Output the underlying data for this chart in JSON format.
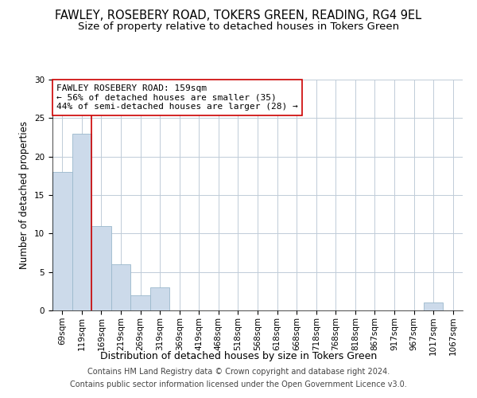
{
  "title": "FAWLEY, ROSEBERY ROAD, TOKERS GREEN, READING, RG4 9EL",
  "subtitle": "Size of property relative to detached houses in Tokers Green",
  "xlabel": "Distribution of detached houses by size in Tokers Green",
  "ylabel": "Number of detached properties",
  "footer_line1": "Contains HM Land Registry data © Crown copyright and database right 2024.",
  "footer_line2": "Contains public sector information licensed under the Open Government Licence v3.0.",
  "bin_labels": [
    "69sqm",
    "119sqm",
    "169sqm",
    "219sqm",
    "269sqm",
    "319sqm",
    "369sqm",
    "419sqm",
    "468sqm",
    "518sqm",
    "568sqm",
    "618sqm",
    "668sqm",
    "718sqm",
    "768sqm",
    "818sqm",
    "867sqm",
    "917sqm",
    "967sqm",
    "1017sqm",
    "1067sqm"
  ],
  "bar_values": [
    18,
    23,
    11,
    6,
    2,
    3,
    0,
    0,
    0,
    0,
    0,
    0,
    0,
    0,
    0,
    0,
    0,
    0,
    0,
    1,
    0
  ],
  "bar_color": "#ccdaea",
  "bar_edgecolor": "#9ab8cc",
  "vline_index": 1.5,
  "vline_color": "#cc0000",
  "annotation_line1": "FAWLEY ROSEBERY ROAD: 159sqm",
  "annotation_line2": "← 56% of detached houses are smaller (35)",
  "annotation_line3": "44% of semi-detached houses are larger (28) →",
  "ylim": [
    0,
    30
  ],
  "yticks": [
    0,
    5,
    10,
    15,
    20,
    25,
    30
  ],
  "background_color": "#ffffff",
  "grid_color": "#c0ccd8",
  "title_fontsize": 10.5,
  "subtitle_fontsize": 9.5,
  "xlabel_fontsize": 9,
  "ylabel_fontsize": 8.5,
  "tick_fontsize": 7.5,
  "annotation_fontsize": 8,
  "footer_fontsize": 7
}
